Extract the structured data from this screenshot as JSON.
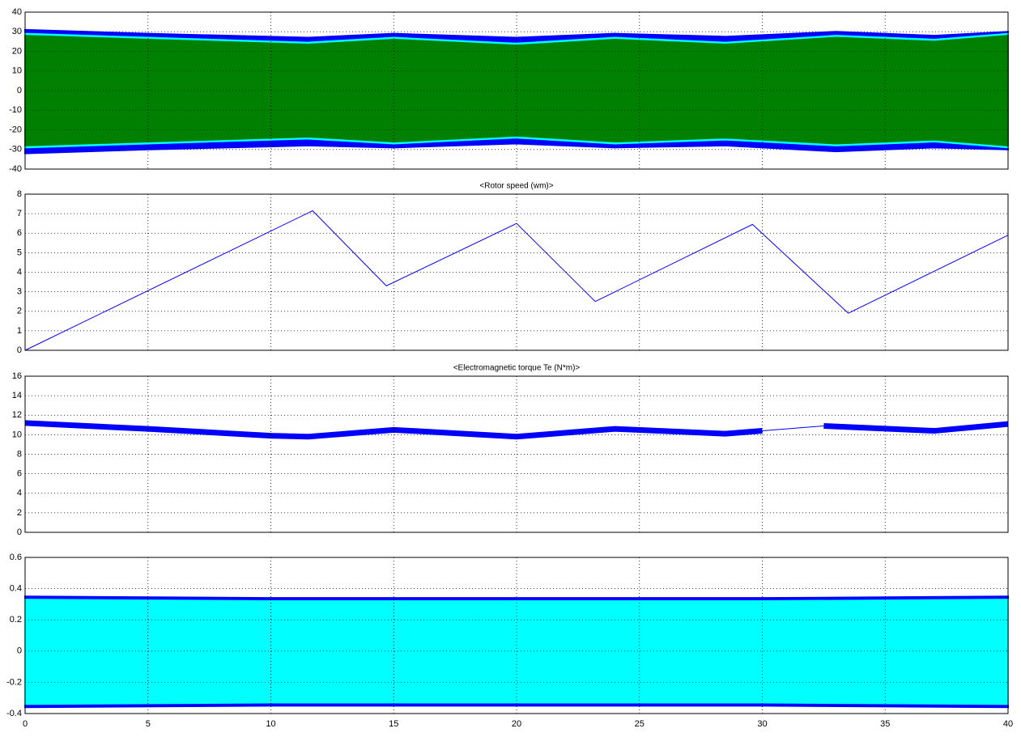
{
  "chart_data": [
    {
      "type": "band",
      "x": [
        0,
        5,
        11.5,
        15,
        20,
        24,
        28.5,
        33,
        37,
        40
      ],
      "series": [
        {
          "color": "#0000ff",
          "upper": [
            31,
            29,
            27,
            29,
            27,
            29,
            27.5,
            30,
            28,
            30
          ],
          "lower": [
            -32,
            -30,
            -28,
            -29,
            -27,
            -29,
            -28,
            -31,
            -29,
            -30
          ]
        },
        {
          "color": "#00ffff",
          "upper": [
            29,
            27,
            24.5,
            27,
            24,
            27,
            24.5,
            28,
            26,
            29
          ],
          "lower": [
            -29,
            -27,
            -24.5,
            -27,
            -24,
            -27,
            -25,
            -28,
            -26,
            -29
          ]
        },
        {
          "color": "#008000",
          "upper": [
            28,
            26,
            23.5,
            26,
            23,
            26,
            23.5,
            27,
            25,
            28
          ],
          "lower": [
            -28,
            -26,
            -23.5,
            -26,
            -23,
            -26,
            -24,
            -27,
            -25,
            -28
          ]
        }
      ],
      "xlim": [
        0,
        40
      ],
      "xticks": [
        0,
        5,
        10,
        15,
        20,
        25,
        30,
        35,
        40
      ],
      "xtick_labels": false,
      "ylim": [
        -40,
        40
      ],
      "yticks": [
        -40,
        -30,
        -20,
        -10,
        0,
        10,
        20,
        30,
        40
      ],
      "grid": true
    },
    {
      "type": "line",
      "title": "<Rotor speed (wm)>",
      "series": [
        {
          "color": "#0000ff",
          "width": 1,
          "x": [
            0,
            11.7,
            14.7,
            20,
            23.2,
            29.6,
            33.5,
            40
          ],
          "values": [
            0,
            7.15,
            3.3,
            6.5,
            2.5,
            6.45,
            1.9,
            5.9
          ]
        }
      ],
      "xlim": [
        0,
        40
      ],
      "xticks": [
        0,
        5,
        10,
        15,
        20,
        25,
        30,
        35,
        40
      ],
      "xtick_labels": false,
      "ylim": [
        0,
        8
      ],
      "yticks": [
        0,
        1,
        2,
        3,
        4,
        5,
        6,
        7,
        8
      ],
      "grid": true
    },
    {
      "type": "line",
      "title": "<Electromagnetic torque Te (N*m)>",
      "series": [
        {
          "color": "#0000ff",
          "width": 1,
          "x": [
            0,
            0,
            15,
            30,
            32.5
          ],
          "values": [
            0,
            11.5,
            null,
            10.4,
            10.9
          ]
        },
        {
          "color": "#0000ff",
          "width": 7,
          "x": [
            0,
            5,
            10,
            11.5,
            15,
            20,
            24,
            28.5,
            30,
            31,
            32.5,
            37,
            40
          ],
          "values": [
            11.2,
            10.6,
            9.9,
            9.8,
            10.5,
            9.8,
            10.6,
            10.1,
            10.4,
            null,
            10.9,
            10.4,
            11.1
          ]
        }
      ],
      "xlim": [
        0,
        40
      ],
      "xticks": [
        0,
        5,
        10,
        15,
        20,
        25,
        30,
        35,
        40
      ],
      "xtick_labels": false,
      "ylim": [
        0,
        16
      ],
      "yticks": [
        0,
        2,
        4,
        6,
        8,
        10,
        12,
        14,
        16
      ],
      "grid": true
    },
    {
      "type": "band",
      "x": [
        0,
        10,
        20,
        30,
        40
      ],
      "series": [
        {
          "color": "#0000ff",
          "upper": [
            0.35,
            0.34,
            0.34,
            0.34,
            0.35
          ],
          "lower": [
            -0.36,
            -0.35,
            -0.35,
            -0.35,
            -0.36
          ]
        },
        {
          "color": "#00ffff",
          "upper": [
            0.33,
            0.32,
            0.32,
            0.32,
            0.33
          ],
          "lower": [
            -0.34,
            -0.33,
            -0.33,
            -0.33,
            -0.34
          ]
        }
      ],
      "xlim": [
        0,
        40
      ],
      "xticks": [
        0,
        5,
        10,
        15,
        20,
        25,
        30,
        35,
        40
      ],
      "xtick_labels": true,
      "ylim": [
        -0.4,
        0.6
      ],
      "yticks": [
        -0.4,
        -0.2,
        0,
        0.2,
        0.4,
        0.6
      ],
      "grid": true
    }
  ]
}
